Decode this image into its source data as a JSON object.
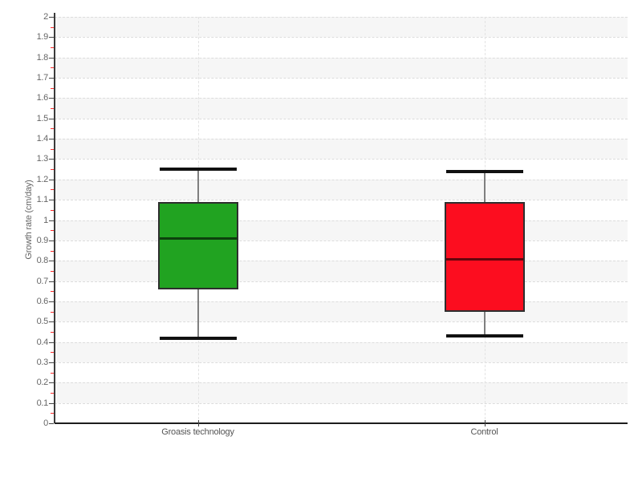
{
  "chart_data": {
    "type": "boxplot",
    "title": "",
    "xlabel": "",
    "ylabel": "Growth rate (cm/day)",
    "ylim": [
      0,
      2
    ],
    "ytick_step": 0.1,
    "yminor_step": 0.05,
    "grid": "horizontal-dashed with alternating light-gray bands, vertical dashed at category centers",
    "legend": "none",
    "categories": [
      "Groasis technology",
      "Control"
    ],
    "series": [
      {
        "name": "Groasis technology",
        "box_color": "#21a321",
        "whisker_low": 0.42,
        "q1": 0.66,
        "median": 0.91,
        "q3": 1.09,
        "whisker_high": 1.25
      },
      {
        "name": "Control",
        "box_color": "#fc0d1f",
        "whisker_low": 0.43,
        "q1": 0.55,
        "median": 0.81,
        "q3": 1.09,
        "whisker_high": 1.24
      }
    ],
    "colors": {
      "background": "#ffffff",
      "band": "#f6f6f6",
      "gridline": "#dcdcdc",
      "axis": "#2e2e2e",
      "major_tick": "#444444",
      "minor_tick": "#ff2a2a",
      "whisker_line": "#7f7f7f",
      "whisker_cap": "#111111",
      "tick_label": "#666666"
    }
  }
}
